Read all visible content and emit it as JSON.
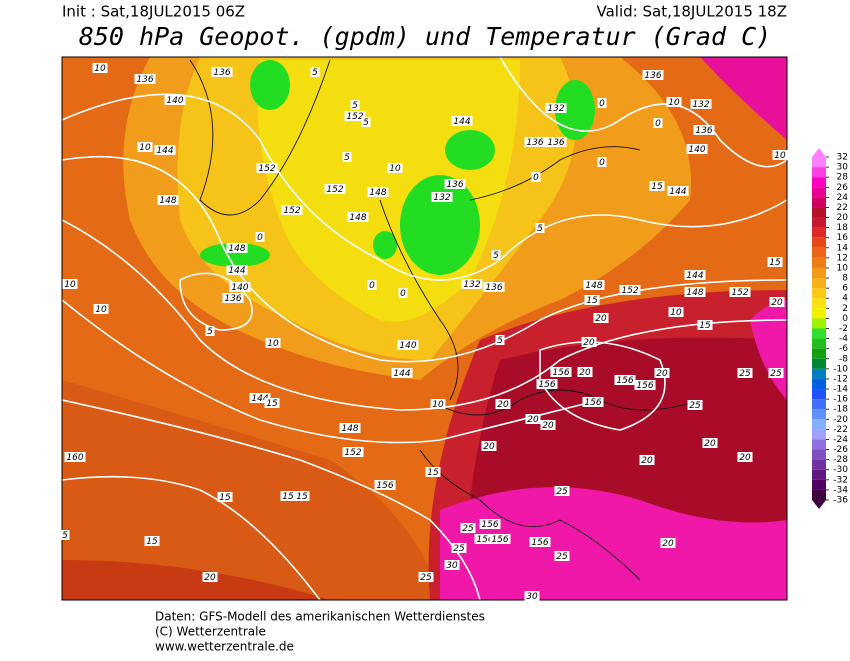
{
  "header": {
    "init": "Init : Sat,18JUL2015 06Z",
    "valid": "Valid: Sat,18JUL2015 18Z",
    "title": "850 hPa Geopot. (gpdm) und Temperatur (Grad C)"
  },
  "map_labels": [
    10,
    136,
    136,
    140,
    144,
    10,
    148,
    152,
    5,
    152,
    5,
    5,
    10,
    5,
    152,
    148,
    148,
    152,
    0,
    148,
    144,
    140,
    136,
    5,
    10,
    144,
    136,
    132,
    136,
    136,
    132,
    0,
    0,
    136,
    10,
    132,
    136,
    140,
    144,
    10,
    0,
    0,
    132,
    136,
    0,
    0,
    140,
    144,
    10,
    10,
    144,
    15,
    10,
    148,
    152,
    160,
    156,
    15,
    15,
    15,
    15,
    15,
    20,
    25,
    156,
    156,
    156,
    25,
    30,
    25,
    30,
    156,
    25,
    20,
    25,
    20,
    20,
    20,
    20,
    20,
    156,
    156,
    20,
    156,
    156,
    156,
    20,
    25,
    20,
    20,
    25,
    25,
    20,
    15,
    10,
    148,
    148,
    15,
    20,
    20,
    152,
    152,
    144,
    15,
    5,
    5,
    5,
    5,
    15
  ],
  "colorbar": {
    "ticks": [
      32,
      30,
      28,
      26,
      24,
      22,
      20,
      18,
      16,
      14,
      12,
      10,
      8,
      6,
      4,
      2,
      0,
      -2,
      -4,
      -6,
      -8,
      -10,
      -12,
      -14,
      -16,
      -18,
      -20,
      -22,
      -24,
      -26,
      -28,
      -30,
      -32,
      -34,
      -36
    ],
    "colors": [
      "#ff80ff",
      "#ff40e0",
      "#ff00c0",
      "#e80090",
      "#d00060",
      "#b8102a",
      "#c81830",
      "#e02828",
      "#e84818",
      "#ec6418",
      "#f07c18",
      "#f49818",
      "#f8b018",
      "#fcc818",
      "#fce010",
      "#f0f000",
      "#a0f000",
      "#30e030",
      "#20c020",
      "#10a010",
      "#008830",
      "#0080c0",
      "#0060e0",
      "#2050ff",
      "#4070ff",
      "#6090ff",
      "#80b0ff",
      "#a0a0ff",
      "#9070e0",
      "#8050c0",
      "#7030a0",
      "#601880",
      "#500060",
      "#400040"
    ]
  },
  "footer": [
    "Daten: GFS-Modell des amerikanischen Wetterdienstes",
    "(C) Wetterzentrale",
    "www.wetterzentrale.de"
  ]
}
